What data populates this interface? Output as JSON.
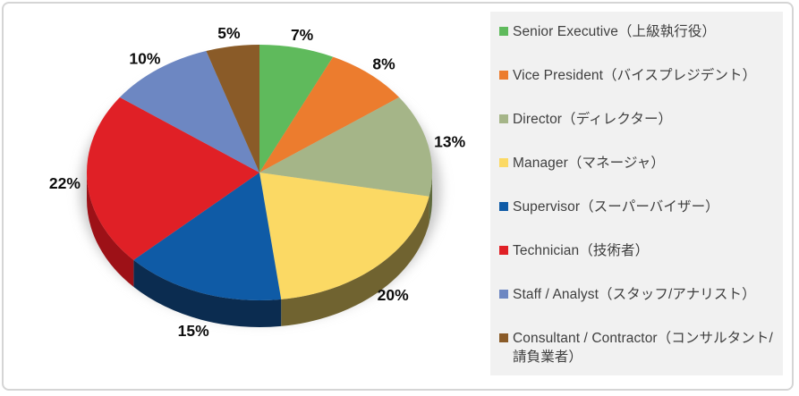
{
  "canvas": {
    "background": "#ffffff",
    "frame_border_color": "#d5d5d5",
    "shadow_color": "#c9c9c9",
    "data_label_color": "#0d0d0d"
  },
  "legend": {
    "position": "right",
    "background": "#f1f1f1",
    "text_color": "#3f3f3f"
  },
  "chart_data": {
    "type": "pie",
    "style": "3d",
    "title": "",
    "start_angle_deg": 0,
    "direction": "clockwise",
    "unit": "percent",
    "total": 100,
    "grid": false,
    "legend_position": "right",
    "data_label_format": "percent-outside",
    "categories": [
      "Senior Executive（上級執行役）",
      "Vice President（バイスプレジデント）",
      "Director（ディレクター）",
      "Manager（マネージャ）",
      "Supervisor（スーパーバイザー）",
      "Technician（技術者）",
      "Staff / Analyst（スタッフ/アナリスト）",
      "Consultant / Contractor（コンサルタント/請負業者）"
    ],
    "series": [
      {
        "key": "senior-executive",
        "label": "Senior Executive（上級執行役）",
        "label_en": "Senior Executive",
        "label_ja": "上級執行役",
        "value": 7,
        "data_label": "7%",
        "color": "#5fba5c",
        "side_color": "#3c7a3a"
      },
      {
        "key": "vice-president",
        "label": "Vice President（バイスプレジデント）",
        "label_en": "Vice President",
        "label_ja": "バイスプレジデント",
        "value": 8,
        "data_label": "8%",
        "color": "#ec7c2e",
        "side_color": "#9c4f1b"
      },
      {
        "key": "director",
        "label": "Director（ディレクター）",
        "label_en": "Director",
        "label_ja": "ディレクター",
        "value": 13,
        "data_label": "13%",
        "color": "#a5b588",
        "side_color": "#5e6a3c"
      },
      {
        "key": "manager",
        "label": "Manager（マネージャ）",
        "label_en": "Manager",
        "label_ja": "マネージャ",
        "value": 20,
        "data_label": "20%",
        "color": "#fbd964",
        "side_color": "#706330"
      },
      {
        "key": "supervisor",
        "label": "Supervisor（スーパーバイザー）",
        "label_en": "Supervisor",
        "label_ja": "スーパーバイザー",
        "value": 15,
        "data_label": "15%",
        "color": "#0f5ba6",
        "side_color": "#0b2c50"
      },
      {
        "key": "technician",
        "label": "Technician（技術者）",
        "label_en": "Technician",
        "label_ja": "技術者",
        "value": 22,
        "data_label": "22%",
        "color": "#e02026",
        "side_color": "#9d1117"
      },
      {
        "key": "staff-analyst",
        "label": "Staff / Analyst（スタッフ/アナリスト）",
        "label_en": "Staff / Analyst",
        "label_ja": "スタッフ/アナリスト",
        "value": 10,
        "data_label": "10%",
        "color": "#6d87c2",
        "side_color": "#44568b"
      },
      {
        "key": "consultant-contractor",
        "label": "Consultant / Contractor（コンサルタント/請負業者）",
        "label_en": "Consultant / Contractor",
        "label_ja": "コンサルタント/請負業者",
        "value": 5,
        "data_label": "5%",
        "color": "#8a5b28",
        "side_color": "#5c3b1b"
      }
    ]
  }
}
